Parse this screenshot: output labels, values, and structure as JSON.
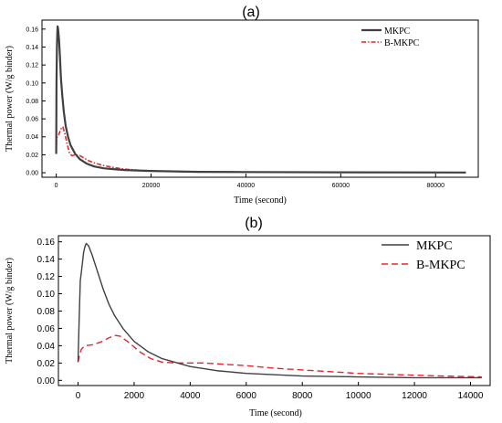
{
  "chart_data": [
    {
      "type": "line",
      "title": "(a)",
      "xlabel": "Time (second)",
      "ylabel": "Thermal power (W/g binder)",
      "xlim": [
        -3000,
        89000
      ],
      "ylim": [
        -0.005,
        0.17
      ],
      "xticks": [
        0,
        20000,
        40000,
        60000,
        80000
      ],
      "yticks": [
        0.0,
        0.02,
        0.04,
        0.06,
        0.08,
        0.1,
        0.12,
        0.14,
        0.16
      ],
      "grid": false,
      "legend": "top-right",
      "series": [
        {
          "name": "MKPC",
          "color": "#404040",
          "style": "solid",
          "points": [
            [
              0,
              0.021
            ],
            [
              60,
              0.1
            ],
            [
              150,
              0.14
            ],
            [
              250,
              0.158
            ],
            [
              300,
              0.163
            ],
            [
              400,
              0.16
            ],
            [
              600,
              0.148
            ],
            [
              800,
              0.128
            ],
            [
              1000,
              0.105
            ],
            [
              1300,
              0.085
            ],
            [
              1600,
              0.068
            ],
            [
              2000,
              0.052
            ],
            [
              2500,
              0.04
            ],
            [
              3000,
              0.031
            ],
            [
              4000,
              0.021
            ],
            [
              5000,
              0.015
            ],
            [
              6500,
              0.01
            ],
            [
              8000,
              0.007
            ],
            [
              10000,
              0.005
            ],
            [
              12000,
              0.004
            ],
            [
              14400,
              0.003
            ],
            [
              20000,
              0.002
            ],
            [
              30000,
              0.001
            ],
            [
              40000,
              0.0008
            ],
            [
              60000,
              0.0005
            ],
            [
              86400,
              0.0003
            ]
          ]
        },
        {
          "name": "B-MKPC",
          "color": "#e8262a",
          "style": "dashdot",
          "points": [
            [
              0,
              0.021
            ],
            [
              80,
              0.035
            ],
            [
              200,
              0.04
            ],
            [
              500,
              0.042
            ],
            [
              800,
              0.046
            ],
            [
              1100,
              0.05
            ],
            [
              1400,
              0.051
            ],
            [
              1800,
              0.044
            ],
            [
              2300,
              0.032
            ],
            [
              2800,
              0.022
            ],
            [
              3300,
              0.019
            ],
            [
              4000,
              0.02
            ],
            [
              5000,
              0.019
            ],
            [
              6000,
              0.016
            ],
            [
              7000,
              0.013
            ],
            [
              8000,
              0.011
            ],
            [
              10000,
              0.008
            ],
            [
              12000,
              0.006
            ],
            [
              14400,
              0.004
            ],
            [
              17000,
              0.003
            ],
            [
              20000,
              0.002
            ],
            [
              30000,
              0.001
            ],
            [
              40000,
              0.0008
            ],
            [
              60000,
              0.0005
            ],
            [
              86400,
              0.0003
            ]
          ]
        }
      ]
    },
    {
      "type": "line",
      "title": "(b)",
      "xlabel": "Time (second)",
      "ylabel": "Thermal power (W/g binder)",
      "xlim": [
        -700,
        14700
      ],
      "ylim": [
        -0.006,
        0.167
      ],
      "xticks": [
        0,
        2000,
        4000,
        6000,
        8000,
        10000,
        12000,
        14000
      ],
      "yticks": [
        0.0,
        0.02,
        0.04,
        0.06,
        0.08,
        0.1,
        0.12,
        0.14,
        0.16
      ],
      "grid": false,
      "legend": "top-right",
      "series": [
        {
          "name": "MKPC",
          "color": "#404040",
          "style": "solid",
          "points": [
            [
              0,
              0.021
            ],
            [
              40,
              0.07
            ],
            [
              80,
              0.115
            ],
            [
              130,
              0.128
            ],
            [
              200,
              0.148
            ],
            [
              260,
              0.156
            ],
            [
              300,
              0.158
            ],
            [
              380,
              0.155
            ],
            [
              500,
              0.145
            ],
            [
              700,
              0.125
            ],
            [
              900,
              0.105
            ],
            [
              1100,
              0.088
            ],
            [
              1300,
              0.075
            ],
            [
              1600,
              0.06
            ],
            [
              2000,
              0.045
            ],
            [
              2500,
              0.033
            ],
            [
              3000,
              0.025
            ],
            [
              4000,
              0.016
            ],
            [
              5000,
              0.011
            ],
            [
              6000,
              0.008
            ],
            [
              8000,
              0.005
            ],
            [
              10000,
              0.004
            ],
            [
              12000,
              0.003
            ],
            [
              14400,
              0.003
            ]
          ]
        },
        {
          "name": "B-MKPC",
          "color": "#e8262a",
          "style": "dashed",
          "points": [
            [
              0,
              0.021
            ],
            [
              60,
              0.03
            ],
            [
              120,
              0.036
            ],
            [
              250,
              0.04
            ],
            [
              500,
              0.041
            ],
            [
              800,
              0.044
            ],
            [
              1100,
              0.049
            ],
            [
              1300,
              0.052
            ],
            [
              1500,
              0.051
            ],
            [
              1800,
              0.044
            ],
            [
              2200,
              0.033
            ],
            [
              2600,
              0.025
            ],
            [
              3000,
              0.021
            ],
            [
              3500,
              0.02
            ],
            [
              4000,
              0.02
            ],
            [
              4500,
              0.02
            ],
            [
              5000,
              0.019
            ],
            [
              6000,
              0.017
            ],
            [
              7000,
              0.014
            ],
            [
              8000,
              0.012
            ],
            [
              9000,
              0.01
            ],
            [
              10000,
              0.008
            ],
            [
              11000,
              0.007
            ],
            [
              12000,
              0.006
            ],
            [
              13000,
              0.005
            ],
            [
              14400,
              0.004
            ]
          ]
        }
      ]
    }
  ]
}
